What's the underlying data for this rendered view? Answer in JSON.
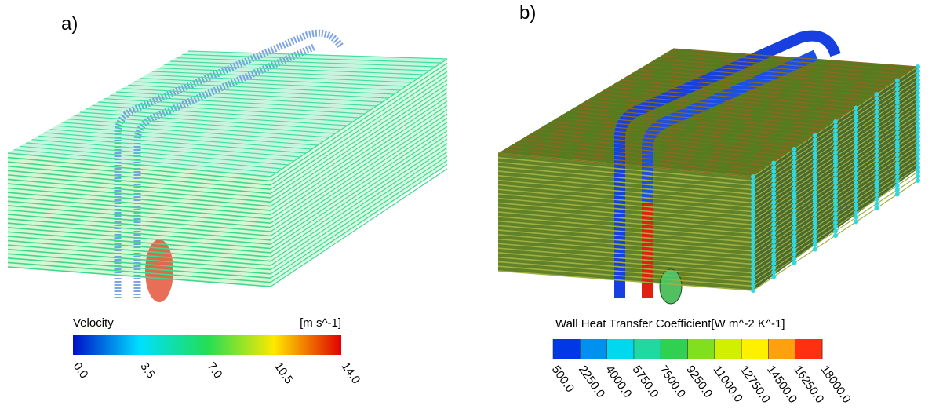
{
  "panels": [
    {
      "label": "a)",
      "legend": {
        "title": "Velocity",
        "unit": "[m s^-1]",
        "ticks": [
          "0.0",
          "3.5",
          "7.0",
          "10.5",
          "14.0"
        ]
      }
    },
    {
      "label": "b)",
      "legend": {
        "title": "Wall Heat Transfer Coefficient[W m^-2 K^-1]",
        "ticks": [
          "500.0",
          "2250.0",
          "4000.0",
          "5750.0",
          "7500.0",
          "9250.0",
          "11000.0",
          "12750.0",
          "14500.0",
          "16250.0",
          "18000.0"
        ]
      }
    }
  ]
}
